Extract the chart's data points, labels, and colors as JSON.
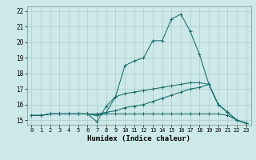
{
  "xlabel": "Humidex (Indice chaleur)",
  "background_color": "#cce8e8",
  "grid_color": "#b0d0d0",
  "line_color": "#1a6b6b",
  "x_values": [
    0,
    1,
    2,
    3,
    4,
    5,
    6,
    7,
    8,
    9,
    10,
    11,
    12,
    13,
    14,
    15,
    16,
    17,
    18,
    19,
    20,
    21,
    22,
    23
  ],
  "series": [
    [
      15.3,
      15.3,
      15.4,
      15.4,
      15.4,
      15.4,
      15.4,
      14.9,
      15.9,
      16.5,
      18.5,
      18.8,
      19.0,
      20.1,
      20.1,
      21.5,
      21.8,
      20.7,
      19.2,
      17.3,
      16.0,
      15.5,
      15.0,
      14.8
    ],
    [
      15.3,
      15.3,
      15.4,
      15.4,
      15.4,
      15.4,
      15.4,
      15.4,
      15.5,
      15.6,
      15.8,
      15.9,
      16.0,
      16.2,
      16.4,
      16.6,
      16.8,
      17.0,
      17.1,
      17.3,
      16.0,
      15.5,
      15.0,
      14.8
    ],
    [
      15.3,
      15.3,
      15.4,
      15.4,
      15.4,
      15.4,
      15.4,
      15.3,
      15.4,
      15.4,
      15.4,
      15.4,
      15.4,
      15.4,
      15.4,
      15.4,
      15.4,
      15.4,
      15.4,
      15.4,
      15.4,
      15.3,
      15.0,
      14.8
    ],
    [
      15.3,
      15.3,
      15.4,
      15.4,
      15.4,
      15.4,
      15.4,
      15.3,
      15.5,
      16.5,
      16.7,
      16.8,
      16.9,
      17.0,
      17.1,
      17.2,
      17.3,
      17.4,
      17.4,
      17.3,
      16.0,
      15.5,
      15.0,
      14.8
    ]
  ],
  "ylim": [
    14.7,
    22.3
  ],
  "yticks": [
    15,
    16,
    17,
    18,
    19,
    20,
    21,
    22
  ],
  "xlim": [
    -0.5,
    23.5
  ],
  "xticks": [
    0,
    1,
    2,
    3,
    4,
    5,
    6,
    7,
    8,
    9,
    10,
    11,
    12,
    13,
    14,
    15,
    16,
    17,
    18,
    19,
    20,
    21,
    22,
    23
  ]
}
